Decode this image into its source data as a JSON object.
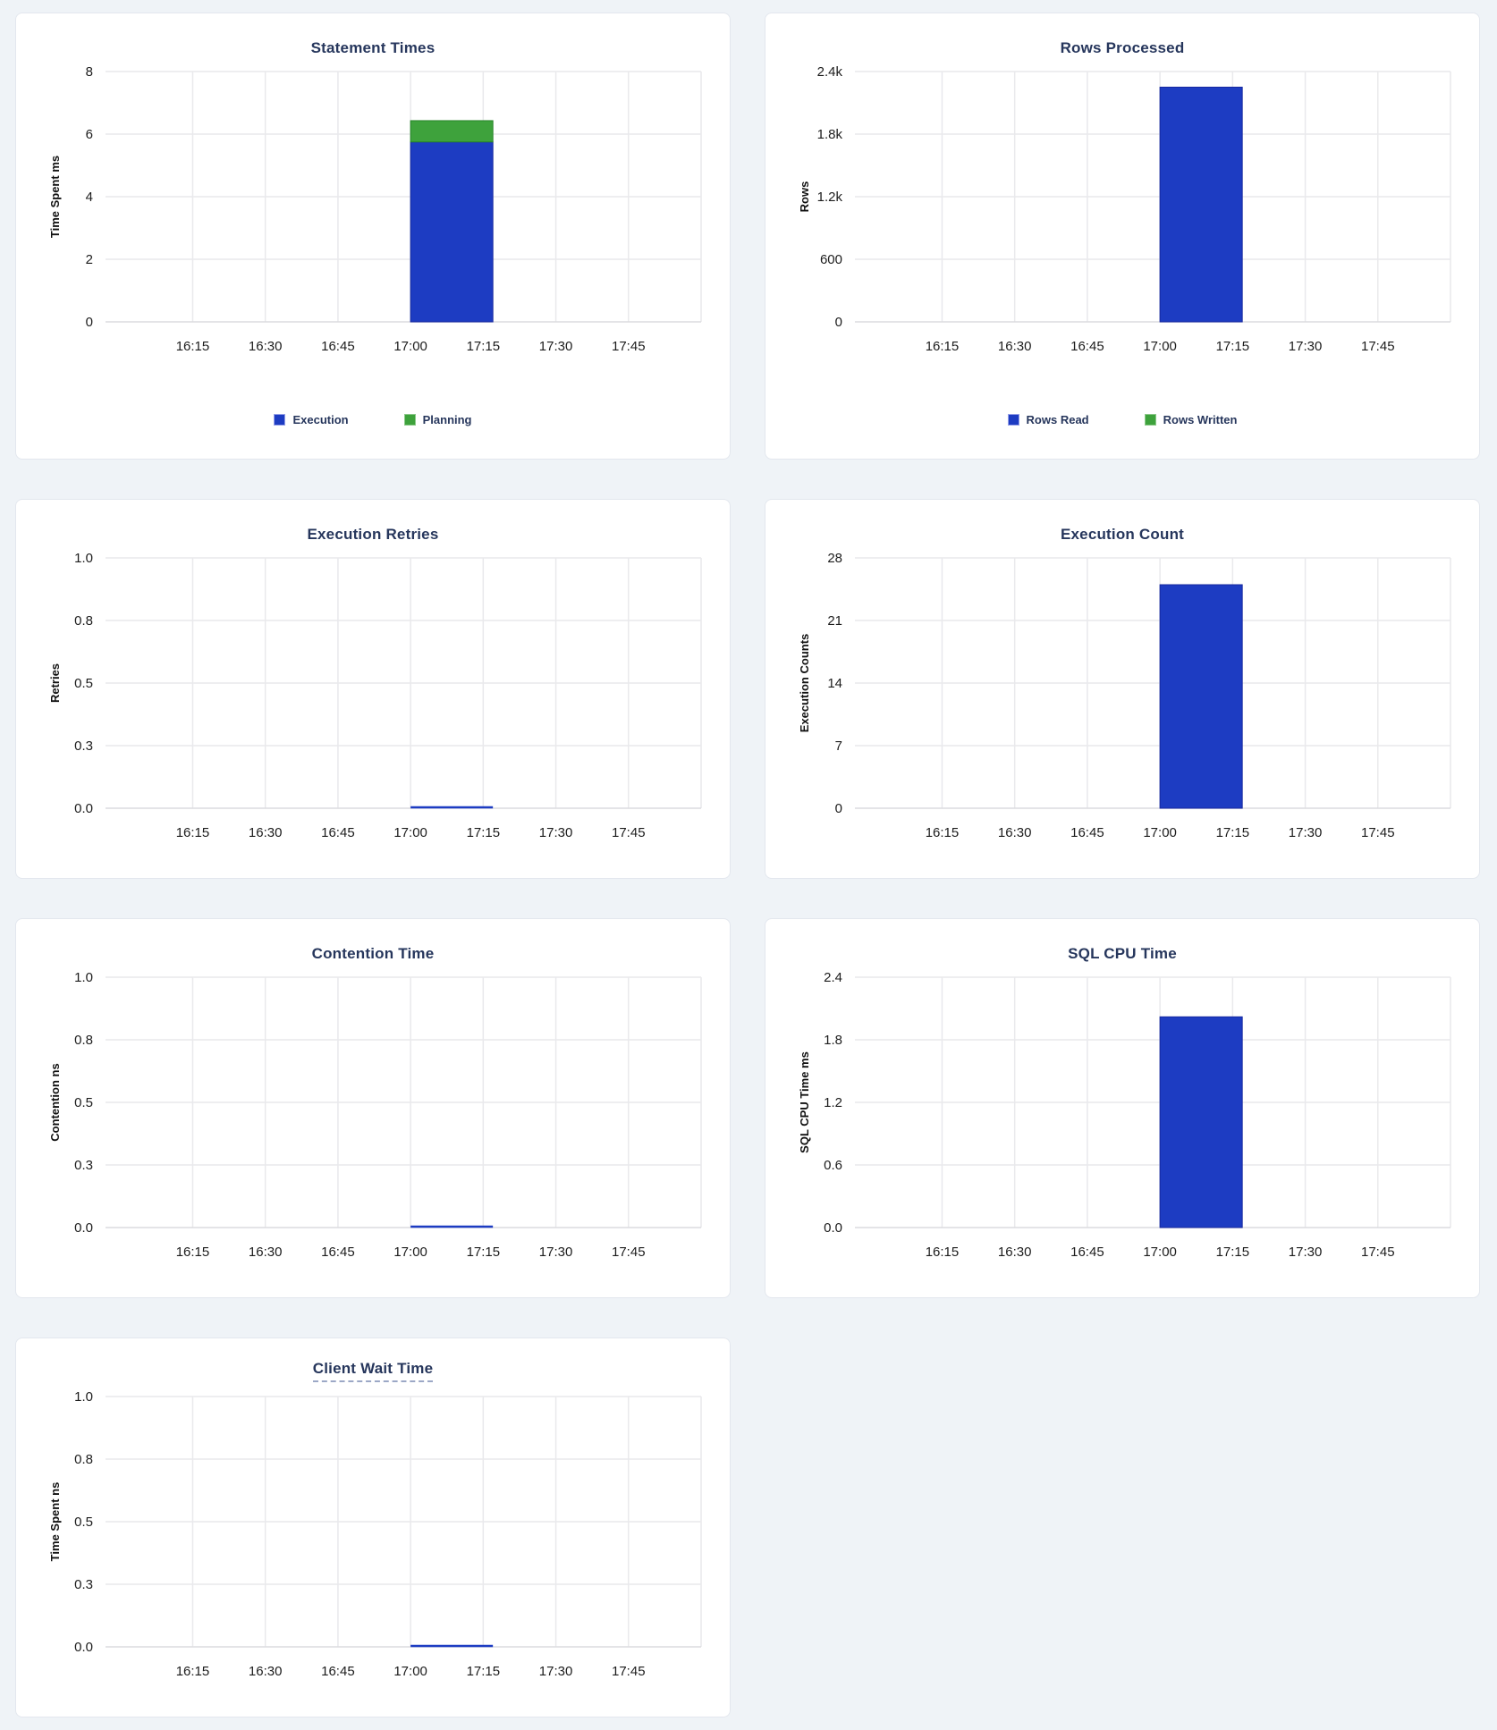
{
  "page": {
    "background": "#eff3f7",
    "card_background": "#ffffff"
  },
  "colors": {
    "blue": "#1d3cc2",
    "blue_stroke": "#16289f",
    "blue_swatch_border": "#96a0e8",
    "green": "#3ea23c",
    "green_stroke": "#268428",
    "green_swatch_border": "#8cc98a",
    "title_navy": "#26365c",
    "tick_label": "#1c1c1c",
    "axis_label": "#111111",
    "gridline": "#e9e9ec",
    "baseline": "#dcdcdf"
  },
  "x_axis": {
    "tick_labels": [
      "16:15",
      "16:30",
      "16:45",
      "17:00",
      "17:15",
      "17:30",
      "17:45"
    ],
    "window": {
      "start": "15:57",
      "end": "18:00"
    },
    "data_interval": {
      "start": "17:00",
      "end": "17:17"
    }
  },
  "chart_data": [
    {
      "type": "bar",
      "title": "Statement Times",
      "ylabel": "Time Spent ms",
      "xlabel": "",
      "y_tick_labels": [
        "0",
        "2",
        "4",
        "6",
        "8"
      ],
      "ylim": [
        0,
        8
      ],
      "grid": true,
      "stacked": true,
      "legend_position": "bottom",
      "categories": [
        "17:00-17:17"
      ],
      "series": [
        {
          "name": "Execution",
          "color": "blue",
          "values": [
            5.75
          ]
        },
        {
          "name": "Planning",
          "color": "green",
          "values": [
            0.68
          ]
        }
      ]
    },
    {
      "type": "bar",
      "title": "Rows Processed",
      "ylabel": "Rows",
      "xlabel": "",
      "y_tick_labels": [
        "0",
        "600",
        "1.2k",
        "1.8k",
        "2.4k"
      ],
      "ylim": [
        0,
        2400
      ],
      "grid": true,
      "stacked": true,
      "legend_position": "bottom",
      "categories": [
        "17:00-17:17"
      ],
      "series": [
        {
          "name": "Rows Read",
          "color": "blue",
          "values": [
            2250
          ]
        },
        {
          "name": "Rows Written",
          "color": "green",
          "values": [
            0
          ]
        }
      ]
    },
    {
      "type": "line",
      "title": "Execution Retries",
      "ylabel": "Retries",
      "xlabel": "",
      "y_tick_labels": [
        "0.0",
        "0.3",
        "0.5",
        "0.8",
        "1.0"
      ],
      "ylim": [
        0,
        1
      ],
      "grid": true,
      "legend_position": "none",
      "series": [
        {
          "color": "blue",
          "segment_value": 0
        }
      ]
    },
    {
      "type": "bar",
      "title": "Execution Count",
      "ylabel": "Execution Counts",
      "xlabel": "",
      "y_tick_labels": [
        "0",
        "7",
        "14",
        "21",
        "28"
      ],
      "ylim": [
        0,
        28
      ],
      "grid": true,
      "stacked": false,
      "legend_position": "none",
      "categories": [
        "17:00-17:17"
      ],
      "series": [
        {
          "color": "blue",
          "values": [
            25
          ]
        }
      ]
    },
    {
      "type": "line",
      "title": "Contention Time",
      "ylabel": "Contention ns",
      "xlabel": "",
      "y_tick_labels": [
        "0.0",
        "0.3",
        "0.5",
        "0.8",
        "1.0"
      ],
      "ylim": [
        0,
        1
      ],
      "grid": true,
      "legend_position": "none",
      "series": [
        {
          "color": "blue",
          "segment_value": 0
        }
      ]
    },
    {
      "type": "bar",
      "title": "SQL CPU Time",
      "ylabel": "SQL CPU Time ms",
      "xlabel": "",
      "y_tick_labels": [
        "0.0",
        "0.6",
        "1.2",
        "1.8",
        "2.4"
      ],
      "ylim": [
        0,
        2.4
      ],
      "grid": true,
      "stacked": false,
      "legend_position": "none",
      "categories": [
        "17:00-17:17"
      ],
      "series": [
        {
          "color": "blue",
          "values": [
            2.02
          ]
        }
      ]
    },
    {
      "type": "line",
      "title": "Client Wait Time",
      "title_underlined": true,
      "ylabel": "Time Spent ns",
      "xlabel": "",
      "y_tick_labels": [
        "0.0",
        "0.3",
        "0.5",
        "0.8",
        "1.0"
      ],
      "ylim": [
        0,
        1
      ],
      "grid": true,
      "legend_position": "none",
      "series": [
        {
          "color": "blue",
          "segment_value": 0
        }
      ]
    }
  ]
}
